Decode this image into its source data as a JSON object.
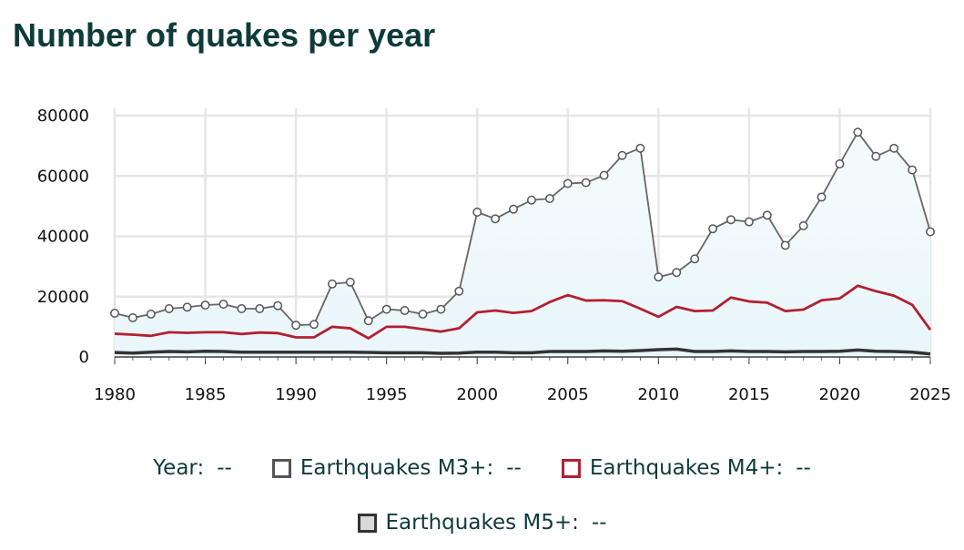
{
  "title": "Number of quakes per year",
  "legend": {
    "year_label": "Year:",
    "year_value": "--",
    "items": [
      {
        "label": "Earthquakes M3+:",
        "value": "--",
        "color": "#555555",
        "fill": "#ffffff"
      },
      {
        "label": "Earthquakes M4+:",
        "value": "--",
        "color": "#b22030",
        "fill": "#ffffff"
      },
      {
        "label": "Earthquakes M5+:",
        "value": "--",
        "color": "#333333",
        "fill": "#d9d9d9"
      }
    ]
  },
  "chart_data": {
    "type": "line",
    "title": "Number of quakes per year",
    "xlabel": "",
    "ylabel": "",
    "ylim": [
      0,
      80000
    ],
    "xlim": [
      1980,
      2025
    ],
    "yticks": [
      "0",
      "20000",
      "40000",
      "60000",
      "80000"
    ],
    "xticks": [
      "1980",
      "1985",
      "1990",
      "1995",
      "2000",
      "2005",
      "2010",
      "2015",
      "2020",
      "2025"
    ],
    "grid": true,
    "x": [
      1980,
      1981,
      1982,
      1983,
      1984,
      1985,
      1986,
      1987,
      1988,
      1989,
      1990,
      1991,
      1992,
      1993,
      1994,
      1995,
      1996,
      1997,
      1998,
      1999,
      2000,
      2001,
      2002,
      2003,
      2004,
      2005,
      2006,
      2007,
      2008,
      2009,
      2010,
      2011,
      2012,
      2013,
      2014,
      2015,
      2016,
      2017,
      2018,
      2019,
      2020,
      2021,
      2022,
      2023,
      2024,
      2025
    ],
    "series": [
      {
        "name": "Earthquakes M3+",
        "color": "#666666",
        "values": [
          14500,
          13000,
          14200,
          16000,
          16500,
          17200,
          17500,
          16000,
          16000,
          17000,
          10500,
          10800,
          24200,
          24800,
          12000,
          15800,
          15400,
          14200,
          15800,
          21800,
          48000,
          45800,
          49000,
          52000,
          52500,
          57500,
          57800,
          60200,
          66800,
          69200,
          26500,
          28000,
          32500,
          42500,
          45500,
          44800,
          47000,
          37000,
          43500,
          53000,
          64000,
          74500,
          66500,
          69200,
          62000,
          41500
        ]
      },
      {
        "name": "Earthquakes M4+",
        "color": "#b22030",
        "values": [
          7700,
          7400,
          7000,
          8200,
          8000,
          8200,
          8200,
          7600,
          8100,
          7900,
          6500,
          6500,
          10000,
          9500,
          6200,
          10000,
          10000,
          9200,
          8400,
          9500,
          14800,
          15400,
          14600,
          15200,
          18200,
          20500,
          18700,
          18800,
          18500,
          16000,
          13300,
          16600,
          15200,
          15400,
          19700,
          18400,
          18000,
          15200,
          15700,
          18800,
          19400,
          23600,
          21800,
          20300,
          17300,
          9000
        ]
      },
      {
        "name": "Earthquakes M5+",
        "color": "#333333",
        "values": [
          1500,
          1300,
          1600,
          1800,
          1700,
          1900,
          1800,
          1600,
          1600,
          1600,
          1600,
          1600,
          1600,
          1600,
          1500,
          1400,
          1400,
          1400,
          1200,
          1300,
          1600,
          1600,
          1400,
          1400,
          1800,
          1800,
          1800,
          2000,
          1900,
          2100,
          2400,
          2600,
          1800,
          1800,
          2000,
          1800,
          1800,
          1700,
          1800,
          1800,
          1900,
          2300,
          1900,
          1800,
          1600,
          1000
        ]
      }
    ]
  }
}
